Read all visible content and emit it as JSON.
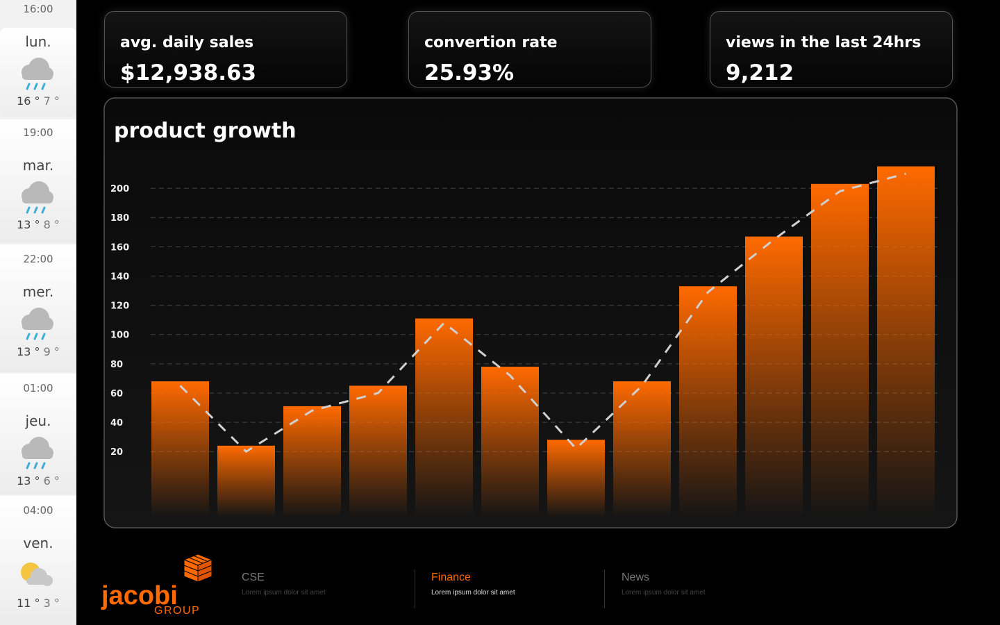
{
  "weather": [
    {
      "time": "16:00",
      "day": "lun.",
      "high": "16 °",
      "low": "7 °"
    },
    {
      "time": "19:00",
      "day": "mar.",
      "high": "13 °",
      "low": "8 °"
    },
    {
      "time": "22:00",
      "day": "mer.",
      "high": "13 °",
      "low": "9 °"
    },
    {
      "time": "01:00",
      "day": "jeu.",
      "high": "13 °",
      "low": "6 °"
    },
    {
      "time": "04:00",
      "day": "ven.",
      "high": "11 °",
      "low": "3 °"
    }
  ],
  "kpis": [
    {
      "label": "avg. daily sales",
      "value": "$12,938.63"
    },
    {
      "label": "convertion rate",
      "value": "25.93%"
    },
    {
      "label": "views in the last 24hrs",
      "value": "9,212"
    }
  ],
  "chart_data": {
    "type": "bar",
    "title": "product growth",
    "categories": [
      null,
      null,
      null,
      null,
      null,
      null,
      null,
      null,
      null,
      null,
      null,
      null
    ],
    "series": [
      {
        "type": "bar",
        "color": "#ff6a00",
        "values": [
          68,
          24,
          51,
          65,
          111,
          78,
          28,
          68,
          133,
          167,
          203,
          215
        ]
      },
      {
        "type": "line",
        "color": "#d0d0d0",
        "values": [
          65,
          20,
          48,
          60,
          108,
          72,
          22,
          65,
          129,
          165,
          198,
          210
        ]
      }
    ],
    "ylim": [
      -25,
      220
    ],
    "yticks": [
      20,
      40,
      60,
      80,
      100,
      120,
      140,
      160,
      180,
      200
    ],
    "grid": true
  },
  "footer": {
    "logo": {
      "name": "jacobi",
      "sub": "GROUP"
    },
    "nav": [
      {
        "title": "CSE",
        "text": "Lorem ipsum dolor sit amet"
      },
      {
        "title": "Finance",
        "text": "Lorem ipsum dolor sit amet"
      },
      {
        "title": "News",
        "text": "Lorem ipsum dolor sit amet"
      }
    ]
  }
}
